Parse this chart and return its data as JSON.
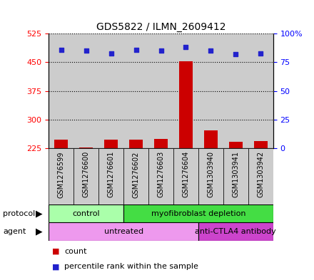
{
  "title": "GDS5822 / ILMN_2609412",
  "samples": [
    "GSM1276599",
    "GSM1276600",
    "GSM1276601",
    "GSM1276602",
    "GSM1276603",
    "GSM1276604",
    "GSM1303940",
    "GSM1303941",
    "GSM1303942"
  ],
  "counts": [
    248,
    228,
    247,
    248,
    250,
    452,
    272,
    243,
    244
  ],
  "percentiles": [
    86,
    85,
    83,
    86,
    85,
    88,
    85,
    82,
    83
  ],
  "ylim_left": [
    225,
    525
  ],
  "yticks_left": [
    225,
    300,
    375,
    450,
    525
  ],
  "ylim_right": [
    0,
    100
  ],
  "yticks_right": [
    0,
    25,
    50,
    75,
    100
  ],
  "yticks_right_labels": [
    "0",
    "25",
    "50",
    "75",
    "100%"
  ],
  "bar_color": "#cc0000",
  "dot_color": "#2222cc",
  "protocol_groups": [
    {
      "label": "control",
      "start": 0,
      "end": 3,
      "color": "#aaffaa"
    },
    {
      "label": "myofibroblast depletion",
      "start": 3,
      "end": 9,
      "color": "#44dd44"
    }
  ],
  "agent_groups": [
    {
      "label": "untreated",
      "start": 0,
      "end": 6,
      "color": "#ee99ee"
    },
    {
      "label": "anti-CTLA4 antibody",
      "start": 6,
      "end": 9,
      "color": "#cc44cc"
    }
  ],
  "bg_color": "#cccccc",
  "bar_bottom": 225
}
